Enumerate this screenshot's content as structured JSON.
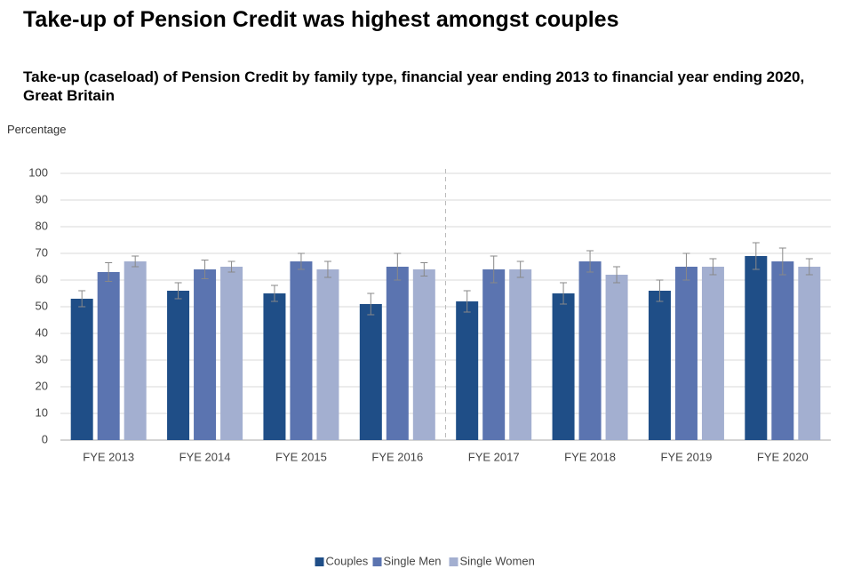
{
  "chart_data": {
    "type": "bar",
    "title": "Take-up of Pension Credit was highest amongst couples",
    "subtitle": "Take-up (caseload) of Pension Credit by family type, financial year ending 2013 to financial year ending 2020, Great Britain",
    "y_label": "Percentage",
    "categories": [
      "FYE 2013",
      "FYE 2014",
      "FYE 2015",
      "FYE 2016",
      "FYE 2017",
      "FYE 2018",
      "FYE 2019",
      "FYE 2020"
    ],
    "series": [
      {
        "name": "Couples",
        "color": "#1f4e87",
        "values": [
          53,
          56,
          55,
          51,
          52,
          55,
          56,
          69
        ],
        "errors": [
          3,
          3,
          3,
          4,
          4,
          4,
          4,
          5
        ]
      },
      {
        "name": "Single Men",
        "color": "#5b74b0",
        "values": [
          63,
          64,
          67,
          65,
          64,
          67,
          65,
          67
        ],
        "errors": [
          3.5,
          3.5,
          3,
          5,
          5,
          4,
          5,
          5
        ]
      },
      {
        "name": "Single Women",
        "color": "#a3afd0",
        "values": [
          67,
          65,
          64,
          64,
          64,
          62,
          65,
          65
        ],
        "errors": [
          2,
          2,
          3,
          2.5,
          3,
          3,
          3,
          3
        ]
      }
    ],
    "ylim": [
      0,
      100
    ],
    "yticks": [
      0,
      10,
      20,
      30,
      40,
      50,
      60,
      70,
      80,
      90,
      100
    ],
    "grid": true,
    "legend": "bottom"
  }
}
